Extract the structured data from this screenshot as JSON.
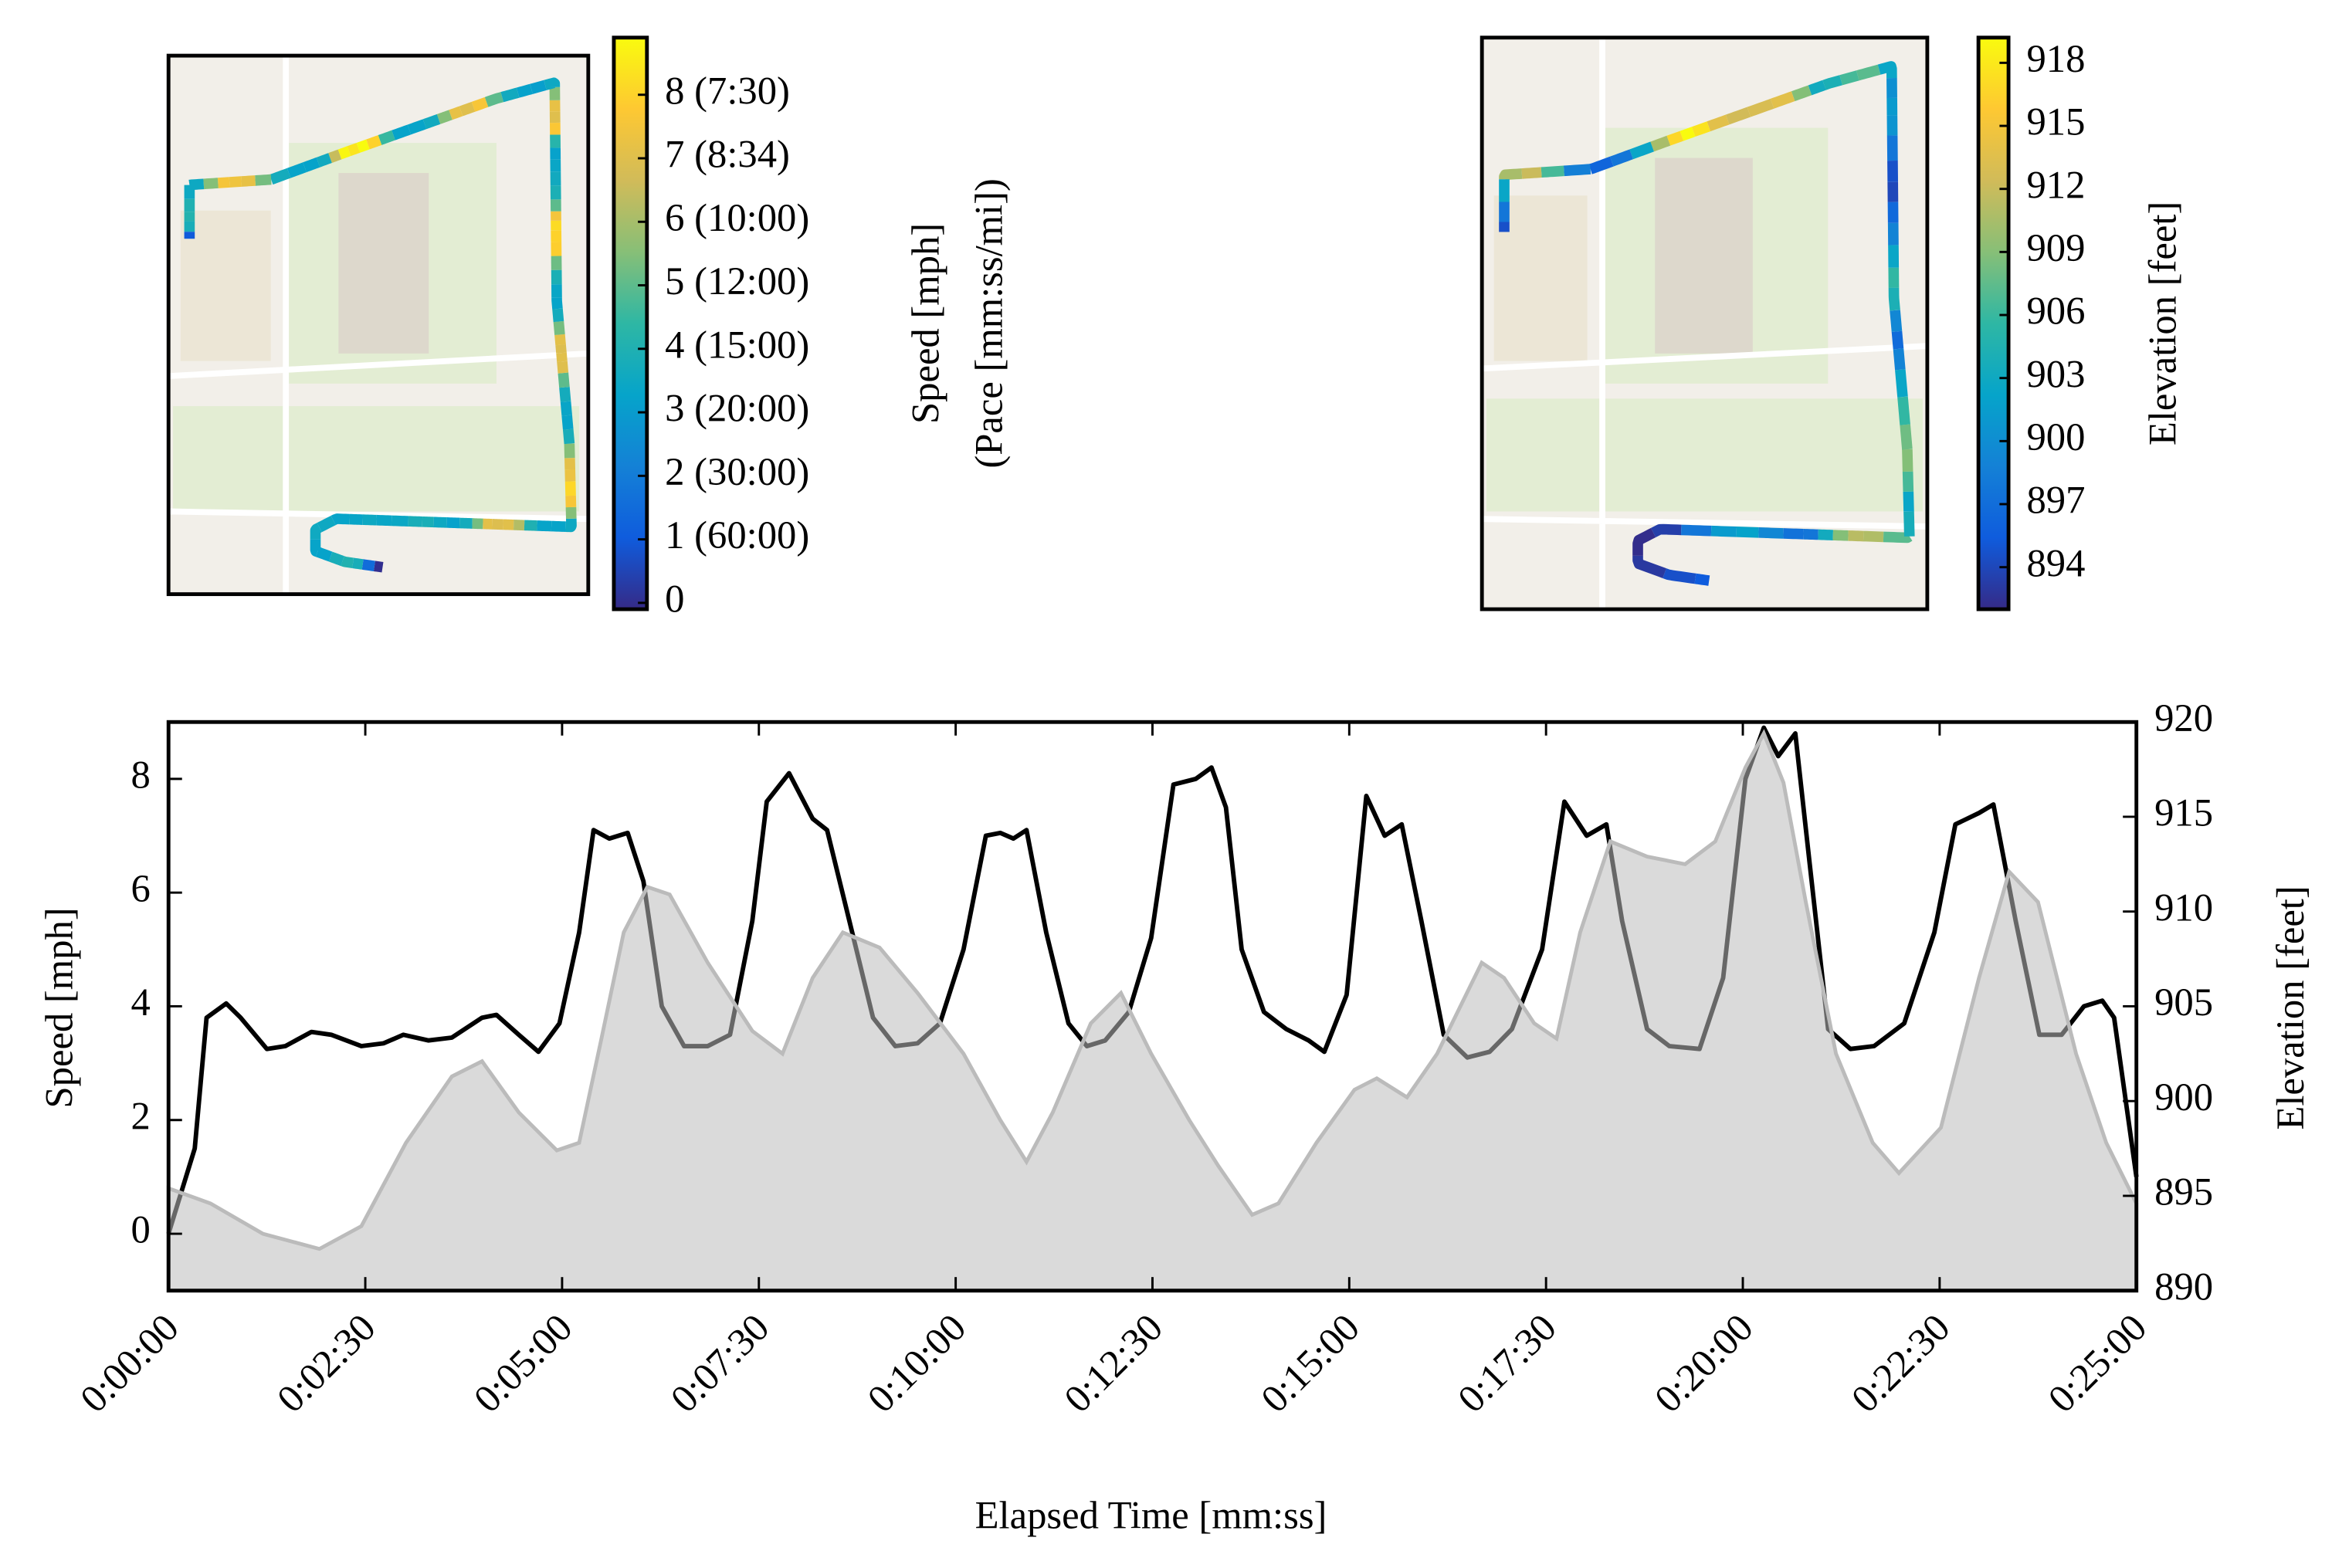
{
  "chart_data": {
    "type": "line",
    "xlabel": "Elapsed Time [mm:ss]",
    "ylabel": "Speed [mph]",
    "y2label": "Elevation [feet]",
    "xlim": [
      0,
      1500
    ],
    "xticks": [
      {
        "value": 0,
        "label": "0:00:00"
      },
      {
        "value": 150,
        "label": "0:02:30"
      },
      {
        "value": 300,
        "label": "0:05:00"
      },
      {
        "value": 450,
        "label": "0:07:30"
      },
      {
        "value": 600,
        "label": "0:10:00"
      },
      {
        "value": 750,
        "label": "0:12:30"
      },
      {
        "value": 900,
        "label": "0:15:00"
      },
      {
        "value": 1050,
        "label": "0:17:30"
      },
      {
        "value": 1200,
        "label": "0:20:00"
      },
      {
        "value": 1350,
        "label": "0:22:30"
      },
      {
        "value": 1500,
        "label": "0:25:00"
      }
    ],
    "ylim": [
      -1,
      9
    ],
    "yticks": [
      0,
      2,
      4,
      6,
      8
    ],
    "y2lim": [
      890,
      920
    ],
    "y2ticks": [
      890,
      895,
      900,
      905,
      910,
      915,
      920
    ],
    "colormap": [
      "#352a87",
      "#0f5cdd",
      "#1481d6",
      "#06a4ca",
      "#2eb7a4",
      "#87bf77",
      "#d1bb59",
      "#fec832",
      "#f9fb0e"
    ],
    "series": [
      {
        "style": "line",
        "axis": "y",
        "color": "#000000",
        "x": [
          0,
          20,
          29,
          44,
          55,
          75,
          89,
          109,
          124,
          147,
          164,
          179,
          198,
          216,
          239,
          250,
          267,
          282,
          298,
          313,
          324,
          336,
          350,
          362,
          376,
          393,
          411,
          428,
          445,
          456,
          473,
          491,
          502,
          519,
          537,
          554,
          571,
          588,
          606,
          623,
          634,
          644,
          654,
          669,
          686,
          700,
          714,
          732,
          749,
          766,
          783,
          795,
          806,
          818,
          835,
          852,
          869,
          881,
          898,
          913,
          927,
          940,
          955,
          972,
          990,
          1007,
          1024,
          1047,
          1064,
          1081,
          1096,
          1108,
          1127,
          1144,
          1167,
          1185,
          1202,
          1216,
          1227,
          1240,
          1251,
          1265,
          1282,
          1300,
          1323,
          1346,
          1362,
          1380,
          1391,
          1408,
          1426,
          1443,
          1460,
          1474,
          1483,
          1500
        ],
        "values": [
          0,
          1.5,
          3.8,
          4.05,
          3.8,
          3.25,
          3.3,
          3.55,
          3.5,
          3.3,
          3.35,
          3.5,
          3.4,
          3.45,
          3.8,
          3.85,
          3.5,
          3.2,
          3.7,
          5.3,
          7.1,
          6.95,
          7.05,
          6.2,
          4.0,
          3.3,
          3.3,
          3.5,
          5.5,
          7.6,
          8.1,
          7.3,
          7.1,
          5.5,
          3.8,
          3.3,
          3.35,
          3.7,
          5.0,
          7.0,
          7.05,
          6.95,
          7.1,
          5.3,
          3.7,
          3.3,
          3.4,
          3.9,
          5.2,
          7.9,
          8.0,
          8.2,
          7.5,
          5.0,
          3.9,
          3.6,
          3.4,
          3.2,
          4.2,
          7.7,
          7.0,
          7.2,
          5.5,
          3.5,
          3.1,
          3.2,
          3.6,
          5.0,
          7.6,
          7.0,
          7.2,
          5.5,
          3.6,
          3.3,
          3.25,
          4.5,
          8.0,
          8.9,
          8.4,
          8.8,
          6.5,
          3.6,
          3.25,
          3.3,
          3.7,
          5.3,
          7.2,
          7.4,
          7.55,
          5.5,
          3.5,
          3.5,
          4.0,
          4.1,
          3.8,
          1.0
        ]
      },
      {
        "style": "area",
        "axis": "y2",
        "color": "#bbbbbb",
        "x": [
          0,
          32,
          72,
          115,
          147,
          181,
          216,
          239,
          267,
          296,
          313,
          330,
          347,
          365,
          382,
          411,
          445,
          468,
          491,
          514,
          542,
          571,
          606,
          634,
          654,
          674,
          703,
          726,
          749,
          778,
          800,
          826,
          846,
          875,
          904,
          921,
          944,
          967,
          1001,
          1018,
          1041,
          1058,
          1076,
          1099,
          1127,
          1156,
          1179,
          1202,
          1216,
          1231,
          1248,
          1271,
          1299,
          1319,
          1351,
          1380,
          1403,
          1425,
          1454,
          1477,
          1500
        ],
        "values": [
          895.4,
          894.6,
          893,
          892.2,
          893.4,
          897.8,
          901.3,
          902.1,
          899.4,
          897.4,
          897.8,
          903.3,
          908.9,
          911.3,
          910.9,
          907.3,
          903.7,
          902.5,
          906.5,
          908.9,
          908.1,
          905.7,
          902.5,
          899,
          896.8,
          899.4,
          904.1,
          905.7,
          902.5,
          899,
          896.6,
          894,
          894.6,
          897.8,
          900.6,
          901.2,
          900.2,
          902.5,
          907.3,
          906.5,
          904.1,
          903.3,
          908.9,
          913.7,
          912.9,
          912.5,
          913.7,
          917.6,
          919.4,
          916.8,
          910.5,
          902.5,
          897.8,
          896.2,
          898.6,
          906.5,
          912.1,
          910.5,
          902.5,
          897.8,
          894.6
        ]
      }
    ],
    "maps": [
      {
        "colorbar": {
          "label": [
            "Speed [mph]",
            "(Pace [mm:ss/mi])"
          ],
          "clim": [
            -0.1,
            8.9
          ],
          "ticks": [
            0,
            {
              "value": 1,
              "label": "1 (60:00)"
            },
            {
              "value": 2,
              "label": "2 (30:00)"
            },
            {
              "value": 3,
              "label": "3 (20:00)"
            },
            {
              "value": 4,
              "label": "4 (15:00)"
            },
            {
              "value": 5,
              "label": "5 (12:00)"
            },
            {
              "value": 6,
              "label": "6 (10:00)"
            },
            {
              "value": 7,
              "label": "7 (8:34)"
            },
            {
              "value": 8,
              "label": "8 (7:30)"
            }
          ]
        }
      },
      {
        "colorbar": {
          "label": [
            "Elevation [feet]"
          ],
          "clim": [
            892,
            919.2
          ],
          "ticks": [
            894,
            897,
            900,
            903,
            906,
            909,
            912,
            915,
            918
          ]
        }
      }
    ]
  }
}
